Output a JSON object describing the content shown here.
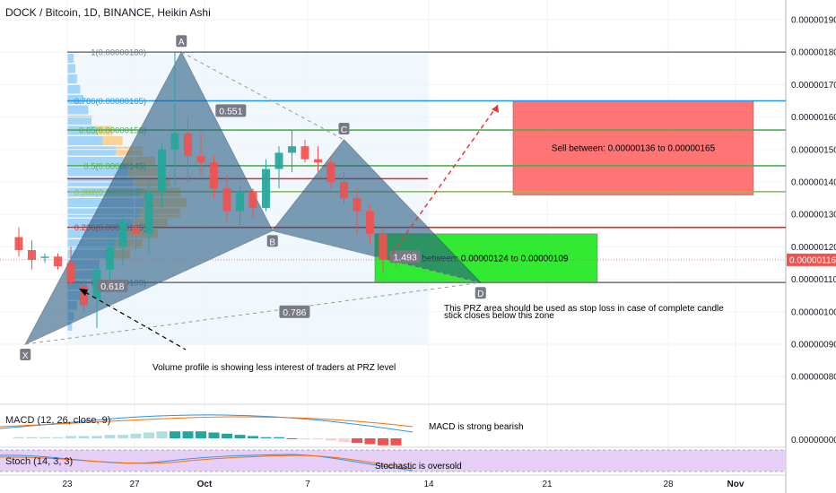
{
  "header": {
    "title": "DOCK / Bitcoin, 1D, BINANCE, Heikin Ashi"
  },
  "price_axis": {
    "ticks": [
      {
        "value": 190,
        "label": "0.00000190"
      },
      {
        "value": 180,
        "label": "0.00000180"
      },
      {
        "value": 170,
        "label": "0.00000170"
      },
      {
        "value": 160,
        "label": "0.00000160"
      },
      {
        "value": 150,
        "label": "0.00000150"
      },
      {
        "value": 140,
        "label": "0.00000140"
      },
      {
        "value": 130,
        "label": "0.00000130"
      },
      {
        "value": 120,
        "label": "0.00000120"
      },
      {
        "value": 110,
        "label": "0.00000110"
      },
      {
        "value": 100,
        "label": "0.00000100"
      },
      {
        "value": 90,
        "label": "0.00000090"
      },
      {
        "value": 80,
        "label": "0.00000080"
      }
    ],
    "last_price": {
      "value": 116,
      "label": "0.00000116"
    },
    "macd_zero_label": "0.00000000"
  },
  "time_axis": {
    "labels": [
      "23",
      "27",
      "Oct",
      "7",
      "14",
      "21",
      "28",
      "Nov"
    ]
  },
  "colors": {
    "bull": "#26a69a",
    "bear": "#ef5350",
    "pattern_fill": "#2a5d82",
    "sell_zone": "#ff5252",
    "buy_zone": "#00e600",
    "fib_blue": "#2196f3",
    "fib_green": "#4caf50",
    "fib_red": "#d32f2f",
    "stoch_bg": "#e6cff7"
  },
  "chart_data": {
    "type": "candlestick",
    "title": "DOCK / Bitcoin, 1D, BINANCE, Heikin Ashi",
    "ylim": [
      74,
      195
    ],
    "candles": [
      {
        "o": 123,
        "h": 126,
        "l": 117,
        "c": 119
      },
      {
        "o": 119,
        "h": 122,
        "l": 113,
        "c": 116
      },
      {
        "o": 117,
        "h": 118,
        "l": 115,
        "c": 117
      },
      {
        "o": 117,
        "h": 118,
        "l": 113,
        "c": 114
      },
      {
        "o": 115,
        "h": 120,
        "l": 108,
        "c": 109
      },
      {
        "o": 108,
        "h": 111,
        "l": 100,
        "c": 102
      },
      {
        "o": 104,
        "h": 115,
        "l": 95,
        "c": 113
      },
      {
        "o": 113,
        "h": 122,
        "l": 109,
        "c": 120
      },
      {
        "o": 120,
        "h": 130,
        "l": 114,
        "c": 128
      },
      {
        "o": 126,
        "h": 131,
        "l": 119,
        "c": 124
      },
      {
        "o": 124,
        "h": 140,
        "l": 118,
        "c": 137
      },
      {
        "o": 137,
        "h": 152,
        "l": 132,
        "c": 150
      },
      {
        "o": 150,
        "h": 180,
        "l": 139,
        "c": 155
      },
      {
        "o": 155,
        "h": 160,
        "l": 140,
        "c": 148
      },
      {
        "o": 148,
        "h": 155,
        "l": 142,
        "c": 146
      },
      {
        "o": 146,
        "h": 148,
        "l": 135,
        "c": 138
      },
      {
        "o": 138,
        "h": 142,
        "l": 128,
        "c": 131
      },
      {
        "o": 131,
        "h": 139,
        "l": 126,
        "c": 137
      },
      {
        "o": 137,
        "h": 138,
        "l": 129,
        "c": 132
      },
      {
        "o": 132,
        "h": 147,
        "l": 131,
        "c": 144
      },
      {
        "o": 144,
        "h": 151,
        "l": 138,
        "c": 149
      },
      {
        "o": 149,
        "h": 156,
        "l": 143,
        "c": 151
      },
      {
        "o": 151,
        "h": 153,
        "l": 146,
        "c": 147
      },
      {
        "o": 147,
        "h": 151,
        "l": 143,
        "c": 146
      },
      {
        "o": 146,
        "h": 148,
        "l": 138,
        "c": 140
      },
      {
        "o": 140,
        "h": 143,
        "l": 133,
        "c": 135
      },
      {
        "o": 135,
        "h": 138,
        "l": 124,
        "c": 131
      },
      {
        "o": 131,
        "h": 133,
        "l": 121,
        "c": 124
      },
      {
        "o": 124,
        "h": 126,
        "l": 112,
        "c": 116
      },
      {
        "o": 118,
        "h": 119,
        "l": 114,
        "c": 117
      }
    ],
    "harmonic_points": [
      {
        "label": "X",
        "bar": 0.5,
        "price": 90
      },
      {
        "label": "A",
        "bar": 12.5,
        "price": 180
      },
      {
        "label": "B",
        "bar": 19.5,
        "price": 125
      },
      {
        "label": "C",
        "bar": 25,
        "price": 153
      },
      {
        "label": "D",
        "bar": 35.5,
        "price": 109
      }
    ],
    "ratios": [
      {
        "label": "0.551",
        "bar": 16.3,
        "price": 162
      },
      {
        "label": "0.618",
        "bar": 7.2,
        "price": 108
      },
      {
        "label": "1.493",
        "bar": 29.7,
        "price": 117
      },
      {
        "label": "0.786",
        "bar": 21.2,
        "price": 100
      }
    ],
    "fib_levels": [
      {
        "label": "1(0.00000180)",
        "value": 180,
        "color": "#787b86"
      },
      {
        "label": "0.786(0.00000165)",
        "value": 165,
        "color": "#2196f3"
      },
      {
        "label": "0.65(0.00000156)",
        "value": 156,
        "color": "#4caf50"
      },
      {
        "label": "0.5(0.00000145)",
        "value": 145,
        "color": "#4caf50"
      },
      {
        "label": "0.382(0.00000137)",
        "value": 137,
        "color": "#8bc34a"
      },
      {
        "label": "0.236(0.00000126)",
        "value": 126,
        "color": "#d32f2f"
      },
      {
        "label": "0(0.00000109)",
        "value": 109,
        "color": "#787b86"
      }
    ],
    "zones": [
      {
        "label": "Sell between: 0.00000136 to 0.00000165",
        "low": 136,
        "high": 165
      },
      {
        "label": "Buy between: 0.00000124 to 0.00000109",
        "low": 109,
        "high": 124
      }
    ],
    "annotations": {
      "volume_profile": "Volume profile is showing less interest of traders at PRZ level",
      "prz_line1": "This PRZ area should be used as stop loss in case of complete candle",
      "prz_line2": "stick closes below this zone",
      "macd_note": "MACD is strong bearish",
      "stoch_note": "Stochastic is oversold"
    },
    "macd": {
      "title": "MACD (12, 26, close, 9)",
      "histogram": [
        1,
        1,
        1,
        1,
        2,
        2,
        2,
        3,
        3,
        4,
        5,
        6,
        6,
        6,
        6,
        5,
        4,
        3,
        2,
        1,
        1,
        0,
        -1,
        -1,
        -2,
        -3,
        -4,
        -5,
        -6,
        -6
      ]
    },
    "stoch": {
      "title": "Stoch (14, 3, 3)"
    }
  }
}
